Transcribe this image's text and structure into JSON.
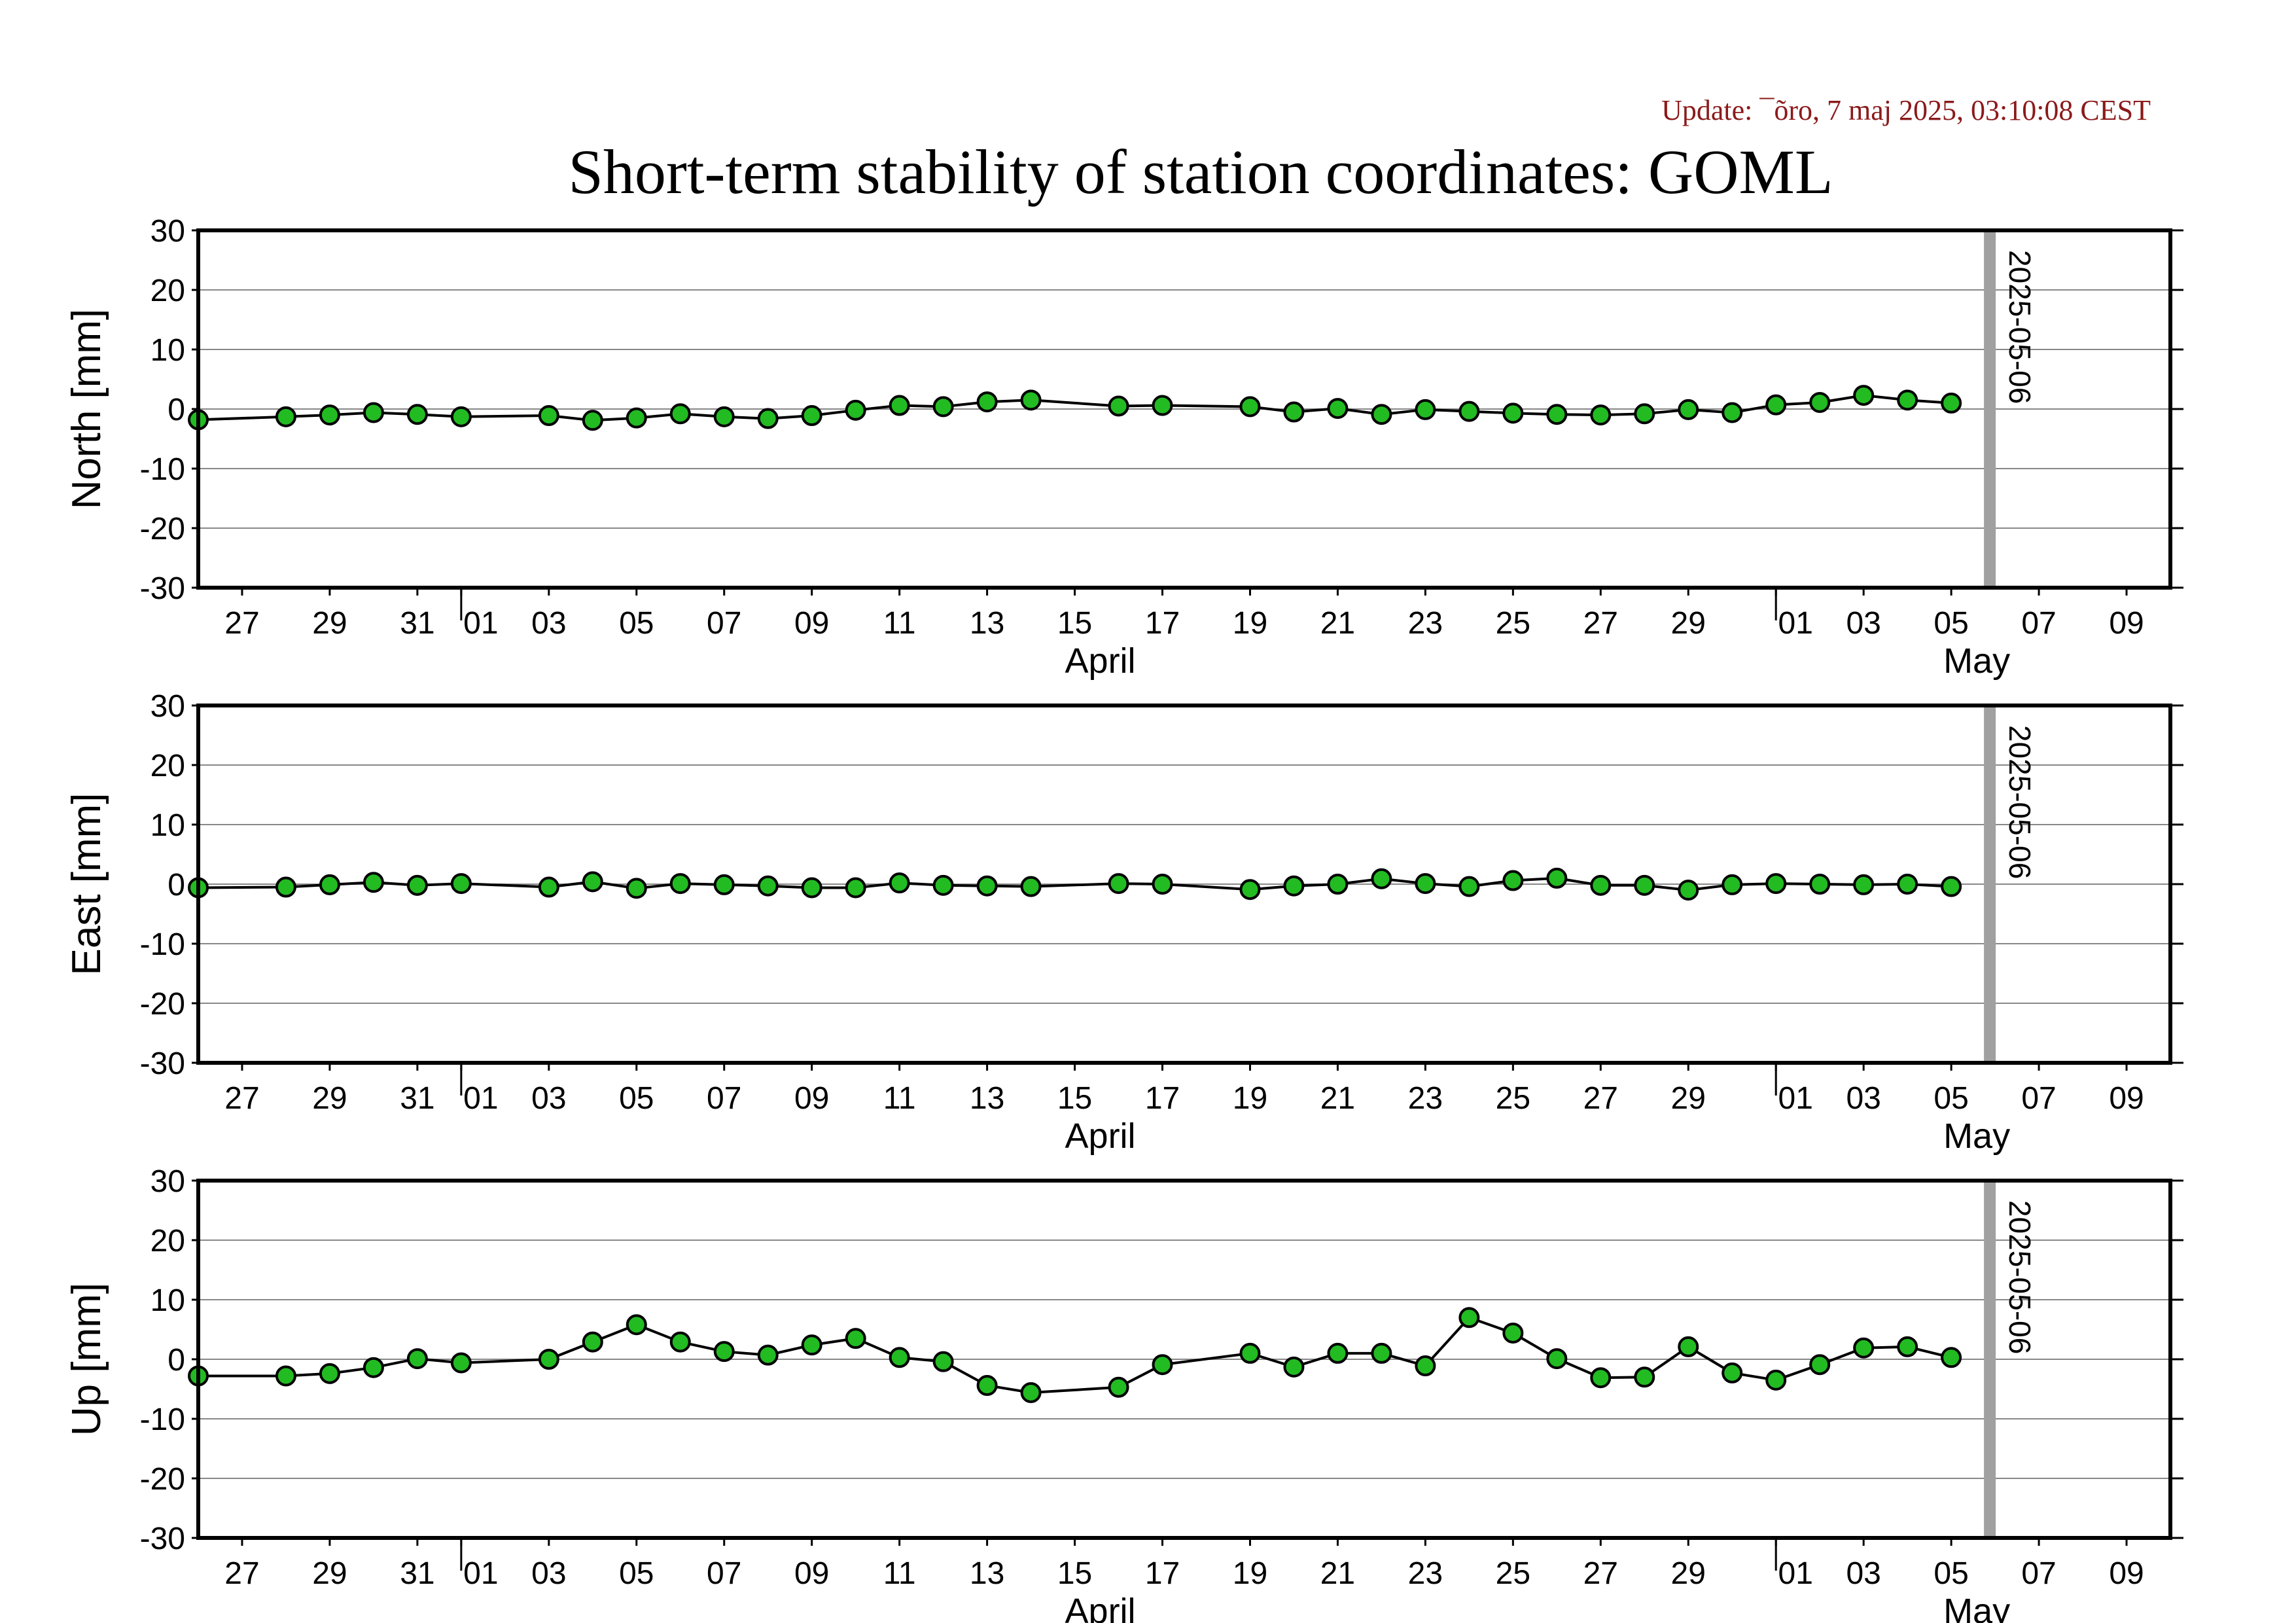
{
  "header": {
    "update": "Update: ¯õro, 7 maj 2025, 03:10:08 CEST",
    "title": "Short-term stability of station coordinates: GOML"
  },
  "chart_data": {
    "type": "scatter",
    "style": {
      "point_color": "#22bb22",
      "point_edge": "#000000",
      "line_color": "#000000",
      "marker_color": "#a0a0a0",
      "grid": true
    },
    "x_axis": {
      "start_date": "2025-03-26",
      "end_date": "2025-05-10",
      "tick_labels": [
        "27",
        "29",
        "31",
        "01",
        "03",
        "05",
        "07",
        "09",
        "11",
        "13",
        "15",
        "17",
        "19",
        "21",
        "23",
        "25",
        "27",
        "29",
        "01",
        "03",
        "05",
        "07",
        "09"
      ],
      "month_labels": [
        "April",
        "May"
      ]
    },
    "marker": {
      "date": "2025-05-06",
      "label": "2025-05-06"
    },
    "series": [
      {
        "name": "North",
        "ylabel": "North [mm]",
        "ylim": [
          -30,
          30
        ],
        "yticks": [
          "30",
          "20",
          "10",
          "0",
          "-10",
          "-20",
          "-30"
        ],
        "values": [
          [
            "2025-03-26",
            -1.8
          ],
          [
            "2025-03-28",
            -1.3
          ],
          [
            "2025-03-29",
            -1.0
          ],
          [
            "2025-03-30",
            -0.6
          ],
          [
            "2025-03-31",
            -0.9
          ],
          [
            "2025-04-01",
            -1.3
          ],
          [
            "2025-04-03",
            -1.1
          ],
          [
            "2025-04-04",
            -1.9
          ],
          [
            "2025-04-05",
            -1.5
          ],
          [
            "2025-04-06",
            -0.8
          ],
          [
            "2025-04-07",
            -1.3
          ],
          [
            "2025-04-08",
            -1.6
          ],
          [
            "2025-04-09",
            -1.1
          ],
          [
            "2025-04-10",
            -0.2
          ],
          [
            "2025-04-11",
            0.6
          ],
          [
            "2025-04-12",
            0.4
          ],
          [
            "2025-04-13",
            1.2
          ],
          [
            "2025-04-14",
            1.5
          ],
          [
            "2025-04-16",
            0.5
          ],
          [
            "2025-04-17",
            0.6
          ],
          [
            "2025-04-19",
            0.4
          ],
          [
            "2025-04-20",
            -0.5
          ],
          [
            "2025-04-21",
            0.1
          ],
          [
            "2025-04-22",
            -0.9
          ],
          [
            "2025-04-23",
            -0.1
          ],
          [
            "2025-04-24",
            -0.4
          ],
          [
            "2025-04-25",
            -0.7
          ],
          [
            "2025-04-26",
            -0.9
          ],
          [
            "2025-04-27",
            -1.0
          ],
          [
            "2025-04-28",
            -0.8
          ],
          [
            "2025-04-29",
            -0.1
          ],
          [
            "2025-04-30",
            -0.6
          ],
          [
            "2025-05-01",
            0.7
          ],
          [
            "2025-05-02",
            1.1
          ],
          [
            "2025-05-03",
            2.3
          ],
          [
            "2025-05-04",
            1.5
          ],
          [
            "2025-05-05",
            1.0
          ]
        ]
      },
      {
        "name": "East",
        "ylabel": "East [mm]",
        "ylim": [
          -30,
          30
        ],
        "yticks": [
          "30",
          "20",
          "10",
          "0",
          "-10",
          "-20",
          "-30"
        ],
        "values": [
          [
            "2025-03-26",
            -0.6
          ],
          [
            "2025-03-28",
            -0.5
          ],
          [
            "2025-03-29",
            -0.1
          ],
          [
            "2025-03-30",
            0.3
          ],
          [
            "2025-03-31",
            -0.2
          ],
          [
            "2025-04-01",
            0.1
          ],
          [
            "2025-04-03",
            -0.5
          ],
          [
            "2025-04-04",
            0.4
          ],
          [
            "2025-04-05",
            -0.7
          ],
          [
            "2025-04-06",
            0.1
          ],
          [
            "2025-04-07",
            -0.1
          ],
          [
            "2025-04-08",
            -0.3
          ],
          [
            "2025-04-09",
            -0.6
          ],
          [
            "2025-04-10",
            -0.6
          ],
          [
            "2025-04-11",
            0.2
          ],
          [
            "2025-04-12",
            -0.2
          ],
          [
            "2025-04-13",
            -0.3
          ],
          [
            "2025-04-14",
            -0.4
          ],
          [
            "2025-04-16",
            0.1
          ],
          [
            "2025-04-17",
            0.0
          ],
          [
            "2025-04-19",
            -0.9
          ],
          [
            "2025-04-20",
            -0.3
          ],
          [
            "2025-04-21",
            0.0
          ],
          [
            "2025-04-22",
            0.9
          ],
          [
            "2025-04-23",
            0.1
          ],
          [
            "2025-04-24",
            -0.4
          ],
          [
            "2025-04-25",
            0.6
          ],
          [
            "2025-04-26",
            1.0
          ],
          [
            "2025-04-27",
            -0.2
          ],
          [
            "2025-04-28",
            -0.2
          ],
          [
            "2025-04-29",
            -1.0
          ],
          [
            "2025-04-30",
            -0.1
          ],
          [
            "2025-05-01",
            0.1
          ],
          [
            "2025-05-02",
            0.0
          ],
          [
            "2025-05-03",
            -0.1
          ],
          [
            "2025-05-04",
            0.0
          ],
          [
            "2025-05-05",
            -0.4
          ]
        ]
      },
      {
        "name": "Up",
        "ylabel": "Up [mm]",
        "ylim": [
          -30,
          30
        ],
        "yticks": [
          "30",
          "20",
          "10",
          "0",
          "-10",
          "-20",
          "-30"
        ],
        "values": [
          [
            "2025-03-26",
            -2.8
          ],
          [
            "2025-03-28",
            -2.8
          ],
          [
            "2025-03-29",
            -2.4
          ],
          [
            "2025-03-30",
            -1.4
          ],
          [
            "2025-03-31",
            0.1
          ],
          [
            "2025-04-01",
            -0.6
          ],
          [
            "2025-04-03",
            0.0
          ],
          [
            "2025-04-04",
            2.9
          ],
          [
            "2025-04-05",
            5.8
          ],
          [
            "2025-04-06",
            2.9
          ],
          [
            "2025-04-07",
            1.3
          ],
          [
            "2025-04-08",
            0.7
          ],
          [
            "2025-04-09",
            2.4
          ],
          [
            "2025-04-10",
            3.5
          ],
          [
            "2025-04-11",
            0.3
          ],
          [
            "2025-04-12",
            -0.4
          ],
          [
            "2025-04-13",
            -4.4
          ],
          [
            "2025-04-14",
            -5.6
          ],
          [
            "2025-04-16",
            -4.7
          ],
          [
            "2025-04-17",
            -0.9
          ],
          [
            "2025-04-19",
            1.0
          ],
          [
            "2025-04-20",
            -1.3
          ],
          [
            "2025-04-21",
            1.0
          ],
          [
            "2025-04-22",
            1.0
          ],
          [
            "2025-04-23",
            -1.1
          ],
          [
            "2025-04-24",
            7.0
          ],
          [
            "2025-04-25",
            4.4
          ],
          [
            "2025-04-26",
            0.1
          ],
          [
            "2025-04-27",
            -3.1
          ],
          [
            "2025-04-28",
            -3.0
          ],
          [
            "2025-04-29",
            2.1
          ],
          [
            "2025-04-30",
            -2.3
          ],
          [
            "2025-05-01",
            -3.5
          ],
          [
            "2025-05-02",
            -0.9
          ],
          [
            "2025-05-03",
            1.9
          ],
          [
            "2025-05-04",
            2.1
          ],
          [
            "2025-05-05",
            0.3
          ]
        ]
      }
    ]
  }
}
